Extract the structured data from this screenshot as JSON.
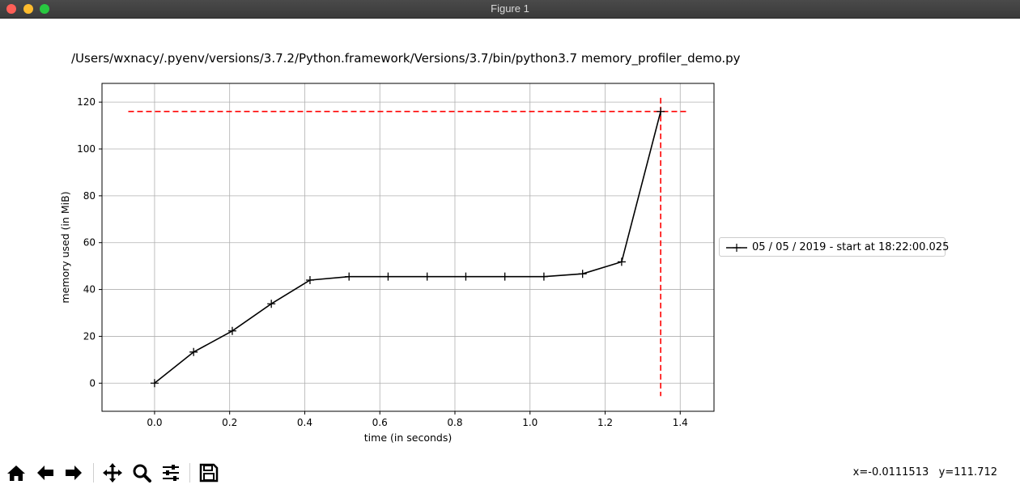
{
  "window": {
    "title": "Figure 1"
  },
  "figure": {
    "title": "/Users/wxnacy/.pyenv/versions/3.7.2/Python.framework/Versions/3.7/bin/python3.7 memory_profiler_demo.py"
  },
  "chart_data": {
    "type": "line",
    "title": "",
    "xlabel": "time (in seconds)",
    "ylabel": "memory used (in MiB)",
    "xlim": [
      -0.14,
      1.49
    ],
    "ylim": [
      -12,
      128
    ],
    "xticks": [
      0.0,
      0.2,
      0.4,
      0.6,
      0.8,
      1.0,
      1.2,
      1.4
    ],
    "xtick_labels": [
      "0.0",
      "0.2",
      "0.4",
      "0.6",
      "0.8",
      "1.0",
      "1.2",
      "1.4"
    ],
    "yticks": [
      0,
      20,
      40,
      60,
      80,
      100,
      120
    ],
    "ytick_labels": [
      "0",
      "20",
      "40",
      "60",
      "80",
      "100",
      "120"
    ],
    "grid": true,
    "legend_position": "center-right outside",
    "series": [
      {
        "name": "05 / 05 / 2019 - start at 18:22:00.025",
        "color": "#000000",
        "marker": "+",
        "x": [
          0.0,
          0.104,
          0.207,
          0.311,
          0.414,
          0.518,
          0.622,
          0.726,
          0.829,
          0.933,
          1.037,
          1.14,
          1.244,
          1.348
        ],
        "y": [
          0.0,
          13.3,
          22.3,
          33.9,
          44.0,
          45.5,
          45.5,
          45.5,
          45.5,
          45.5,
          45.5,
          46.7,
          51.8,
          116.0
        ]
      }
    ],
    "reference_lines": [
      {
        "orientation": "horizontal",
        "value": 116.0,
        "from": -0.07,
        "to": 1.42,
        "color": "#ff0000",
        "style": "dashed"
      },
      {
        "orientation": "vertical",
        "value": 1.348,
        "from": -5.5,
        "to": 121.8,
        "color": "#ff0000",
        "style": "dashed"
      }
    ]
  },
  "toolbar": {
    "buttons": [
      {
        "name": "home-button",
        "icon": "home-icon"
      },
      {
        "name": "back-button",
        "icon": "arrow-left-icon"
      },
      {
        "name": "forward-button",
        "icon": "arrow-right-icon"
      },
      {
        "name": "pan-button",
        "icon": "move-icon"
      },
      {
        "name": "zoom-button",
        "icon": "magnifier-icon"
      },
      {
        "name": "configure-subplots-button",
        "icon": "sliders-icon"
      },
      {
        "name": "save-button",
        "icon": "floppy-disk-icon"
      }
    ],
    "coords": "x=-0.0111513   y=111.712"
  }
}
